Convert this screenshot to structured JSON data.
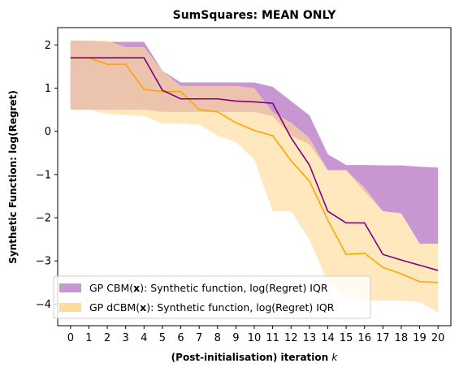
{
  "chart_data": {
    "type": "line",
    "title": "SumSquares: MEAN ONLY",
    "xlabel": "(Post-initialisation) iteration",
    "xlabel_var": "k",
    "ylabel": "Synthetic Function: log(Regret)",
    "x": [
      0,
      1,
      2,
      3,
      4,
      5,
      6,
      7,
      8,
      9,
      10,
      11,
      12,
      13,
      14,
      15,
      16,
      17,
      18,
      19,
      20
    ],
    "xlim": [
      -0.7,
      20.7
    ],
    "ylim": [
      -4.5,
      2.4
    ],
    "yticks": [
      2,
      1,
      0,
      -1,
      -2,
      -3,
      -4
    ],
    "grid": false,
    "legend_position": "bottom-left",
    "series": [
      {
        "name": "GP CBM",
        "legend_prefix": "GP CBM(",
        "legend_var": "x",
        "legend_suffix": "):   Synthetic function, log(Regret) IQR",
        "line_color": "#800080",
        "band_color": "#c896d0",
        "median": [
          1.7,
          1.7,
          1.7,
          1.7,
          1.7,
          0.95,
          0.75,
          0.75,
          0.75,
          0.7,
          0.68,
          0.65,
          -0.15,
          -0.78,
          -1.85,
          -2.12,
          -2.12,
          -2.85,
          -2.98,
          -3.1,
          -3.22
        ],
        "q1": [
          0.5,
          0.5,
          0.5,
          0.5,
          0.5,
          0.45,
          0.45,
          0.45,
          0.45,
          0.45,
          0.45,
          0.35,
          -0.1,
          -0.3,
          -0.9,
          -0.9,
          -1.4,
          -1.85,
          -1.9,
          -2.6,
          -2.6
        ],
        "q3": [
          2.1,
          2.1,
          2.07,
          2.07,
          2.07,
          1.4,
          1.13,
          1.13,
          1.13,
          1.13,
          1.13,
          1.03,
          0.7,
          0.37,
          -0.53,
          -0.78,
          -0.78,
          -0.79,
          -0.79,
          -0.82,
          -0.84
        ]
      },
      {
        "name": "GP dCBM",
        "legend_prefix": "GP dCBM(",
        "legend_var": "x",
        "legend_suffix": "): Synthetic function, log(Regret) IQR",
        "line_color": "#ffa500",
        "band_color": "#ffdc9a",
        "median": [
          1.7,
          1.7,
          1.55,
          1.55,
          0.97,
          0.92,
          0.92,
          0.5,
          0.45,
          0.2,
          0.02,
          -0.1,
          -0.68,
          -1.15,
          -2.05,
          -2.85,
          -2.82,
          -3.15,
          -3.3,
          -3.48,
          -3.5
        ],
        "q1": [
          0.5,
          0.5,
          0.4,
          0.38,
          0.35,
          0.18,
          0.18,
          0.15,
          -0.1,
          -0.25,
          -0.65,
          -1.85,
          -1.85,
          -2.5,
          -3.5,
          -3.85,
          -3.92,
          -3.92,
          -3.92,
          -3.95,
          -4.2
        ],
        "q3": [
          2.1,
          2.1,
          2.1,
          1.95,
          1.95,
          1.4,
          1.05,
          1.05,
          1.05,
          1.05,
          1.0,
          0.45,
          0.2,
          -0.15,
          -0.9,
          -0.9,
          -1.3,
          -1.85,
          -1.9,
          -2.6,
          -2.6
        ]
      }
    ]
  }
}
